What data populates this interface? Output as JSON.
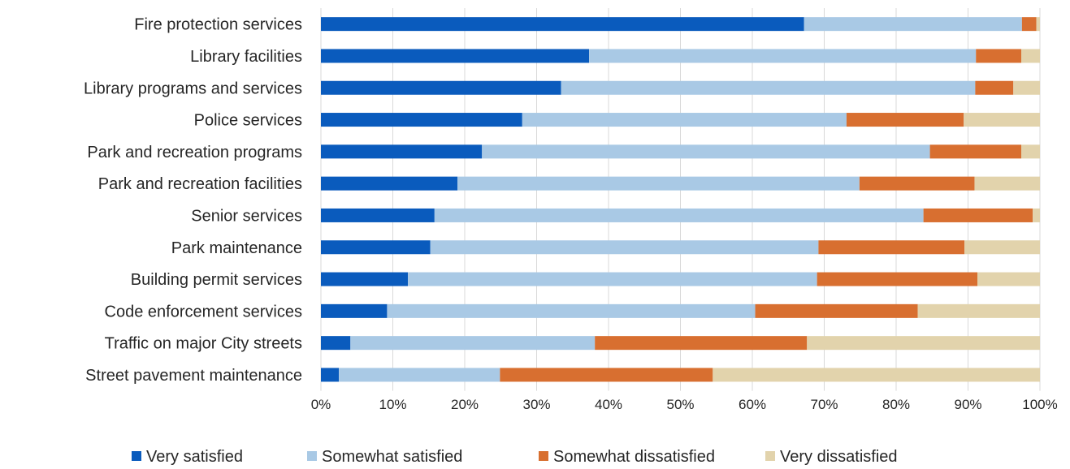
{
  "chart_data": {
    "type": "bar",
    "orientation": "horizontal",
    "stacked": true,
    "title": "",
    "xlabel": "",
    "ylabel": "",
    "xlim": [
      0,
      100
    ],
    "x_ticks": [
      "0%",
      "10%",
      "20%",
      "30%",
      "40%",
      "50%",
      "60%",
      "70%",
      "80%",
      "90%",
      "100%"
    ],
    "grid": "vertical",
    "legend_position": "bottom",
    "categories": [
      "Fire protection services",
      "Library facilities",
      "Library programs and services",
      "Police services",
      "Park and recreation programs",
      "Park and recreation facilities",
      "Senior services",
      "Park maintenance",
      "Building permit services",
      "Code enforcement services",
      "Traffic on major City streets",
      "Street pavement maintenance"
    ],
    "series": [
      {
        "name": "Very satisfied",
        "color": "#0a5bbd",
        "values": [
          67.2,
          37.3,
          33.4,
          28.0,
          22.4,
          19.0,
          15.8,
          15.2,
          12.1,
          9.2,
          4.1,
          2.5
        ]
      },
      {
        "name": "Somewhat satisfied",
        "color": "#a9c9e5",
        "values": [
          30.3,
          53.8,
          57.6,
          45.1,
          62.3,
          55.9,
          68.0,
          54.0,
          56.9,
          51.2,
          34.0,
          22.4
        ]
      },
      {
        "name": "Somewhat dissatisfied",
        "color": "#d86f30",
        "values": [
          2.0,
          6.3,
          5.3,
          16.3,
          12.7,
          16.0,
          15.2,
          20.3,
          22.3,
          22.6,
          29.5,
          29.6
        ]
      },
      {
        "name": "Very dissatisfied",
        "color": "#e2d3ac",
        "values": [
          0.5,
          2.6,
          3.7,
          10.6,
          2.6,
          9.1,
          1.0,
          10.5,
          8.7,
          17.0,
          32.4,
          45.5
        ]
      }
    ]
  }
}
